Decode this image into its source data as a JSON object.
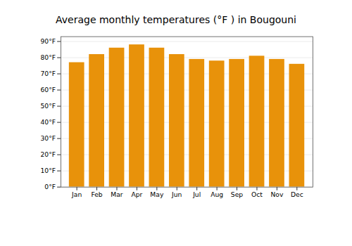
{
  "chart_data": {
    "type": "bar",
    "title": "Average monthly temperatures (°F ) in Bougouni",
    "categories": [
      "Jan",
      "Feb",
      "Mar",
      "Apr",
      "May",
      "Jun",
      "Jul",
      "Aug",
      "Sep",
      "Oct",
      "Nov",
      "Dec"
    ],
    "values": [
      77,
      82,
      86,
      88,
      86,
      82,
      79,
      78,
      79,
      81,
      79,
      76
    ],
    "color": "#E8920A",
    "ylim": [
      0,
      93
    ],
    "yticks": [
      {
        "value": 0,
        "label": "0°F"
      },
      {
        "value": 10,
        "label": "10°F"
      },
      {
        "value": 20,
        "label": "20°F"
      },
      {
        "value": 30,
        "label": "30°F"
      },
      {
        "value": 40,
        "label": "40°F"
      },
      {
        "value": 50,
        "label": "50°F"
      },
      {
        "value": 60,
        "label": "60°F"
      },
      {
        "value": 70,
        "label": "70°F"
      },
      {
        "value": 80,
        "label": "80°F"
      },
      {
        "value": 90,
        "label": "90°F"
      }
    ],
    "grid": true
  }
}
